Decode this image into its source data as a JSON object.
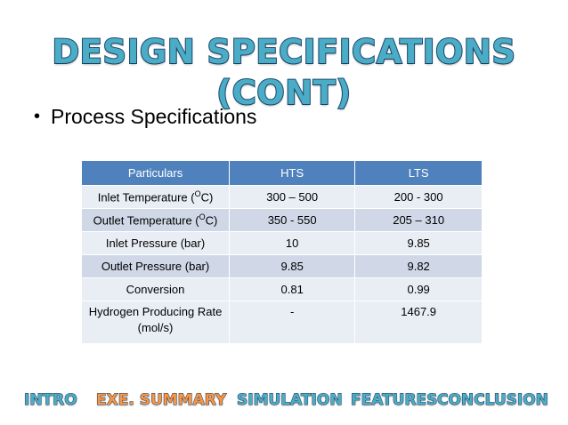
{
  "slide": {
    "title": "DESIGN SPECIFICATIONS (CONT)",
    "title_color": "#4bacc6",
    "bullet": "Process Specifications"
  },
  "table": {
    "headers": [
      "Particulars",
      "HTS",
      "LTS"
    ],
    "header_color": "#4f81bd",
    "rows": [
      {
        "particular_prefix": "Inlet Temperature (",
        "particular_sup": "O",
        "particular_suffix": "C)",
        "hts": "300 – 500",
        "lts": "200 - 300"
      },
      {
        "particular_prefix": "Outlet Temperature (",
        "particular_sup": "O",
        "particular_suffix": "C)",
        "hts": "350 - 550",
        "lts": "205 – 310"
      },
      {
        "particular": "Inlet Pressure (bar)",
        "hts": "10",
        "lts": "9.85"
      },
      {
        "particular": "Outlet Pressure (bar)",
        "hts": "9.85",
        "lts": "9.82"
      },
      {
        "particular": "Conversion",
        "hts": "0.81",
        "lts": "0.99"
      },
      {
        "particular": "Hydrogen Producing Rate (mol/s)",
        "hts": "-",
        "lts": "1467.9"
      }
    ]
  },
  "nav": {
    "items": [
      {
        "label": "INTRO",
        "color": "#4bacc6"
      },
      {
        "label": "EXE. SUMMARY",
        "color": "#f79646"
      },
      {
        "label": "SIMULATION",
        "color": "#4bacc6"
      },
      {
        "label": "FEATURES",
        "color": "#4bacc6"
      },
      {
        "label": "CONCLUSION",
        "color": "#4bacc6"
      }
    ]
  }
}
